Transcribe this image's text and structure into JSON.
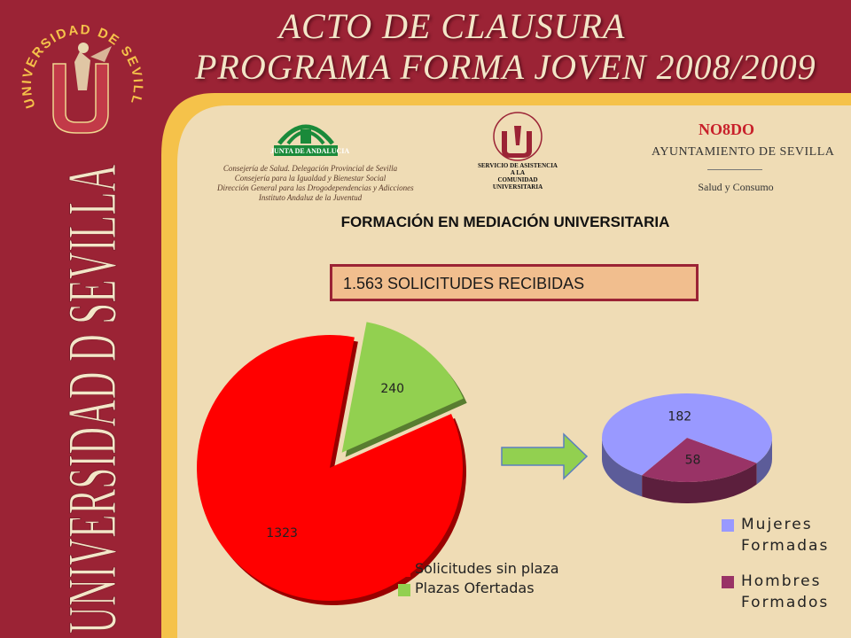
{
  "header": {
    "title_line1": "ACTO DE CLAUSURA",
    "title_line2": "PROGRAMA FORMA JOVEN  2008/2009"
  },
  "branding": {
    "seal_text": "UNIVERSIDAD DE SEVILLA",
    "vertical_text": "UNIVERSIDAD D SEVILLA"
  },
  "logos": {
    "junta": {
      "name": "JUNTA DE ANDALUCIA",
      "lines": [
        "Consejería de Salud. Delegación Provincial de Sevilla",
        "Consejería para la Igualdad y Bienestar Social",
        "Dirección General para las Drogodependencias y Adicciones",
        "Instituto Andaluz de la Juventud"
      ]
    },
    "sacu": {
      "lines": [
        "SERVICIO DE ASISTENCIA",
        "A LA",
        "COMUNIDAD",
        "UNIVERSITARIA"
      ]
    },
    "ayuntamiento": {
      "motto": "NO8DO",
      "name": "AYUNTAMIENTO DE SEVILLA",
      "department": "Salud y Consumo"
    }
  },
  "heading": "FORMACIÓN EN MEDIACIÓN UNIVERSITARIA",
  "banner": "1.563 SOLICITUDES RECIBIDAS",
  "colors": {
    "background": "#9b2335",
    "panel": "#efdcb5",
    "accent_stripe": "#f5c24a",
    "banner_fill": "#f1be8e",
    "red_slice": "#ff0000",
    "green_slice": "#92d050",
    "blue_slice": "#9999ff",
    "maroon_slice": "#993366"
  },
  "chart_data": [
    {
      "type": "pie",
      "title": "",
      "categories": [
        "Solicitudes sin plaza",
        "Plazas Ofertadas"
      ],
      "values": [
        1323,
        240
      ],
      "colors": [
        "#ff0000",
        "#92d050"
      ],
      "legend": [
        "Solicitudes sin plaza",
        "Plazas Ofertadas"
      ],
      "legend_position": "bottom-right",
      "exploded": true
    },
    {
      "type": "pie",
      "title": "",
      "categories": [
        "Mujeres Formadas",
        "Hombres Formados"
      ],
      "values": [
        182,
        58
      ],
      "colors": [
        "#9999ff",
        "#993366"
      ],
      "legend": [
        "Mujeres Formadas",
        "Hombres Formados"
      ],
      "legend_position": "bottom-right",
      "style": "3d"
    }
  ]
}
